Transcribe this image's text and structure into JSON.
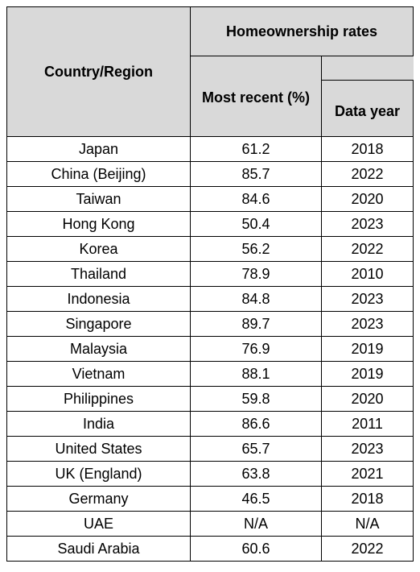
{
  "table": {
    "headers": {
      "country": "Country/Region",
      "group": "Homeownership rates",
      "recent": "Most recent (%)",
      "year": "Data year"
    },
    "rows": [
      {
        "country": "Japan",
        "rate": "61.2",
        "year": "2018"
      },
      {
        "country": "China (Beijing)",
        "rate": "85.7",
        "year": "2022"
      },
      {
        "country": "Taiwan",
        "rate": "84.6",
        "year": "2020"
      },
      {
        "country": "Hong Kong",
        "rate": "50.4",
        "year": "2023"
      },
      {
        "country": "Korea",
        "rate": "56.2",
        "year": "2022"
      },
      {
        "country": "Thailand",
        "rate": "78.9",
        "year": "2010"
      },
      {
        "country": "Indonesia",
        "rate": "84.8",
        "year": "2023"
      },
      {
        "country": "Singapore",
        "rate": "89.7",
        "year": "2023"
      },
      {
        "country": "Malaysia",
        "rate": "76.9",
        "year": "2019"
      },
      {
        "country": "Vietnam",
        "rate": "88.1",
        "year": "2019"
      },
      {
        "country": "Philippines",
        "rate": "59.8",
        "year": "2020"
      },
      {
        "country": "India",
        "rate": "86.6",
        "year": "2011"
      },
      {
        "country": "United States",
        "rate": "65.7",
        "year": "2023"
      },
      {
        "country": "UK (England)",
        "rate": "63.8",
        "year": "2021"
      },
      {
        "country": "Germany",
        "rate": "46.5",
        "year": "2018"
      },
      {
        "country": "UAE",
        "rate": "N/A",
        "year": "N/A"
      },
      {
        "country": "Saudi Arabia",
        "rate": "60.6",
        "year": "2022"
      }
    ]
  },
  "colors": {
    "header_background": "#d9d9d9",
    "border": "#000000",
    "text": "#000000"
  }
}
